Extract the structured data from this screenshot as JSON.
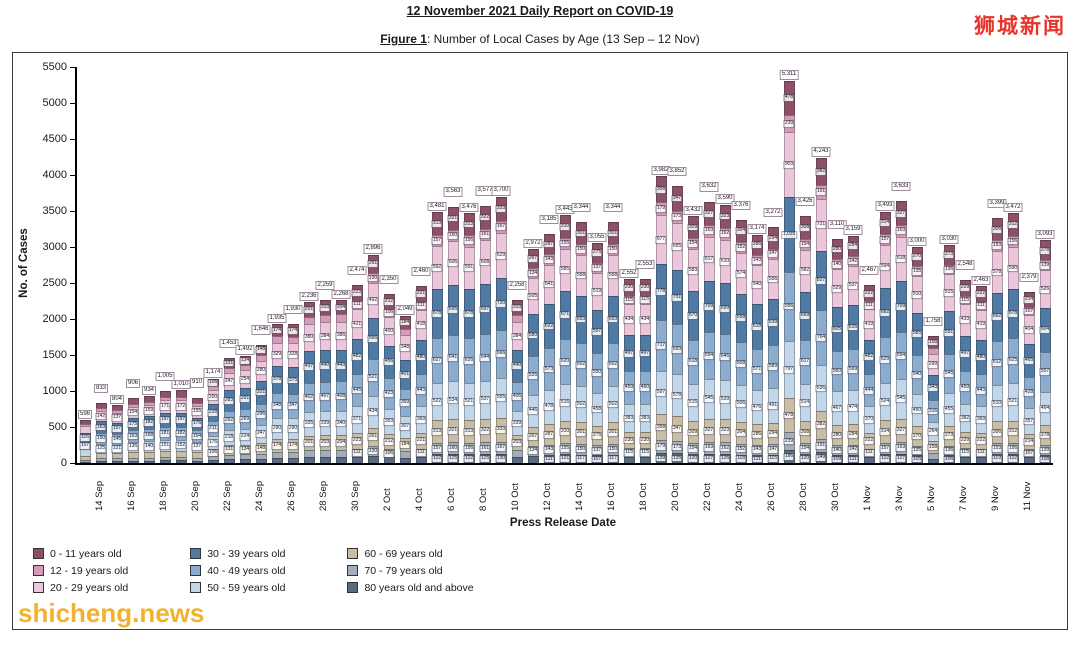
{
  "page": {
    "title": "12 November 2021 Daily Report on COVID-19",
    "figure_label": "Figure 1",
    "figure_caption_rest": ": Number of Local Cases by Age (13 Sep – 12 Nov)",
    "watermark_topright": "狮城新闻",
    "watermark_bottomleft": "shicheng.news"
  },
  "chart_data": {
    "type": "bar",
    "stacked": true,
    "title": "Number of Local Cases by Age (13 Sep – 12 Nov)",
    "xlabel": "Press Release Date",
    "ylabel": "No. of Cases",
    "ylim": [
      0,
      5500
    ],
    "ytick_labels": [
      "0",
      "500",
      "1000",
      "1500",
      "2000",
      "2500",
      "3000",
      "3500",
      "4000",
      "4500",
      "5000",
      "5500"
    ],
    "grid": false,
    "legend_position": "bottom",
    "x_dates": [
      "13 Sep",
      "14 Sep",
      "15 Sep",
      "16 Sep",
      "17 Sep",
      "18 Sep",
      "19 Sep",
      "20 Sep",
      "21 Sep",
      "22 Sep",
      "23 Sep",
      "24 Sep",
      "25 Sep",
      "26 Sep",
      "27 Sep",
      "28 Sep",
      "29 Sep",
      "30 Sep",
      "1 Oct",
      "2 Oct",
      "3 Oct",
      "4 Oct",
      "5 Oct",
      "6 Oct",
      "7 Oct",
      "8 Oct",
      "9 Oct",
      "10 Oct",
      "11 Oct",
      "12 Oct",
      "13 Oct",
      "14 Oct",
      "15 Oct",
      "16 Oct",
      "17 Oct",
      "18 Oct",
      "19 Oct",
      "20 Oct",
      "21 Oct",
      "22 Oct",
      "23 Oct",
      "24 Oct",
      "25 Oct",
      "26 Oct",
      "27 Oct",
      "28 Oct",
      "29 Oct",
      "30 Oct",
      "31 Oct",
      "1 Nov",
      "2 Nov",
      "3 Nov",
      "4 Nov",
      "5 Nov",
      "6 Nov",
      "7 Nov",
      "8 Nov",
      "9 Nov",
      "10 Nov",
      "11 Nov",
      "12 Nov"
    ],
    "xtick_labels_shown": [
      "14 Sep",
      "16 Sep",
      "18 Sep",
      "20 Sep",
      "22 Sep",
      "24 Sep",
      "26 Sep",
      "28 Sep",
      "30 Sep",
      "2 Oct",
      "4 Oct",
      "6 Oct",
      "8 Oct",
      "10 Oct",
      "12 Oct",
      "14 Oct",
      "16 Oct",
      "18 Oct",
      "20 Oct",
      "22 Oct",
      "24 Oct",
      "26 Oct",
      "28 Oct",
      "30 Oct",
      "1 Nov",
      "3 Nov",
      "5 Nov",
      "7 Nov",
      "9 Nov",
      "11 Nov"
    ],
    "totals": [
      596,
      833,
      804,
      906,
      934,
      1005,
      1010,
      910,
      1174,
      1453,
      1492,
      1646,
      1935,
      1930,
      2236,
      2259,
      2268,
      2474,
      2896,
      2350,
      2049,
      2460,
      3481,
      3563,
      3476,
      3577,
      3700,
      2258,
      2972,
      3185,
      3443,
      3344,
      3055,
      3344,
      2552,
      2553,
      3982,
      3852,
      3432,
      3632,
      3590,
      3376,
      3174,
      3272,
      5311,
      3426,
      4243,
      3110,
      3159,
      2467,
      3493,
      3633,
      3000,
      1758,
      3030,
      2548,
      2463,
      3399,
      3472,
      2379,
      3093
    ],
    "stack_order_bottom_to_top": [
      "80 years old and above",
      "70 - 79 years old",
      "60 - 69 years old",
      "50 - 59 years old",
      "40 - 49 years old",
      "30 - 39 years old",
      "20 - 29 years old",
      "12 - 19 years old",
      "0 - 11 years old"
    ],
    "age_share_pct_estimate": {
      "80 years old and above": 3.5,
      "70 - 79 years old": 4.5,
      "60 - 69 years old": 9,
      "50 - 59 years old": 15,
      "40 - 49 years old": 18,
      "30 - 39 years old": 19.5,
      "20 - 29 years old": 17,
      "12 - 19 years old": 4.5,
      "0 - 11 years old": 9
    },
    "segments_estimated": true,
    "legend": [
      {
        "label": "0 - 11 years old",
        "color": "#8c5068"
      },
      {
        "label": "12 - 19 years old",
        "color": "#d49bba"
      },
      {
        "label": "20 - 29 years old",
        "color": "#ecc6dc"
      },
      {
        "label": "30 - 39 years old",
        "color": "#4f7aa4"
      },
      {
        "label": "40 - 49 years old",
        "color": "#8cacce"
      },
      {
        "label": "50 - 59 years old",
        "color": "#c2d6ea"
      },
      {
        "label": "60 - 69 years old",
        "color": "#c9bda6"
      },
      {
        "label": "70 - 79 years old",
        "color": "#a2aeb9"
      },
      {
        "label": "80 years old and above",
        "color": "#5a6b7e"
      }
    ]
  }
}
